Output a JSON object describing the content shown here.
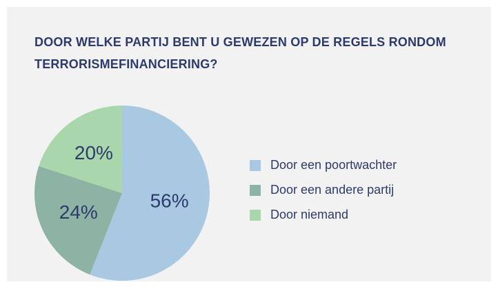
{
  "chart_data": {
    "type": "pie",
    "title": "DOOR WELKE PARTIJ BENT U GEWEZEN OP DE REGELS RONDOM TERRORISMEFINANCIERING?",
    "categories": [
      "Door een poortwachter",
      "Door een andere partij",
      "Door niemand"
    ],
    "values": [
      56,
      24,
      20
    ],
    "value_labels": [
      "56%",
      "24%",
      "20%"
    ],
    "colors": [
      "#a9c8e2",
      "#8db3a5",
      "#a9d6ab"
    ],
    "legend": "right"
  }
}
